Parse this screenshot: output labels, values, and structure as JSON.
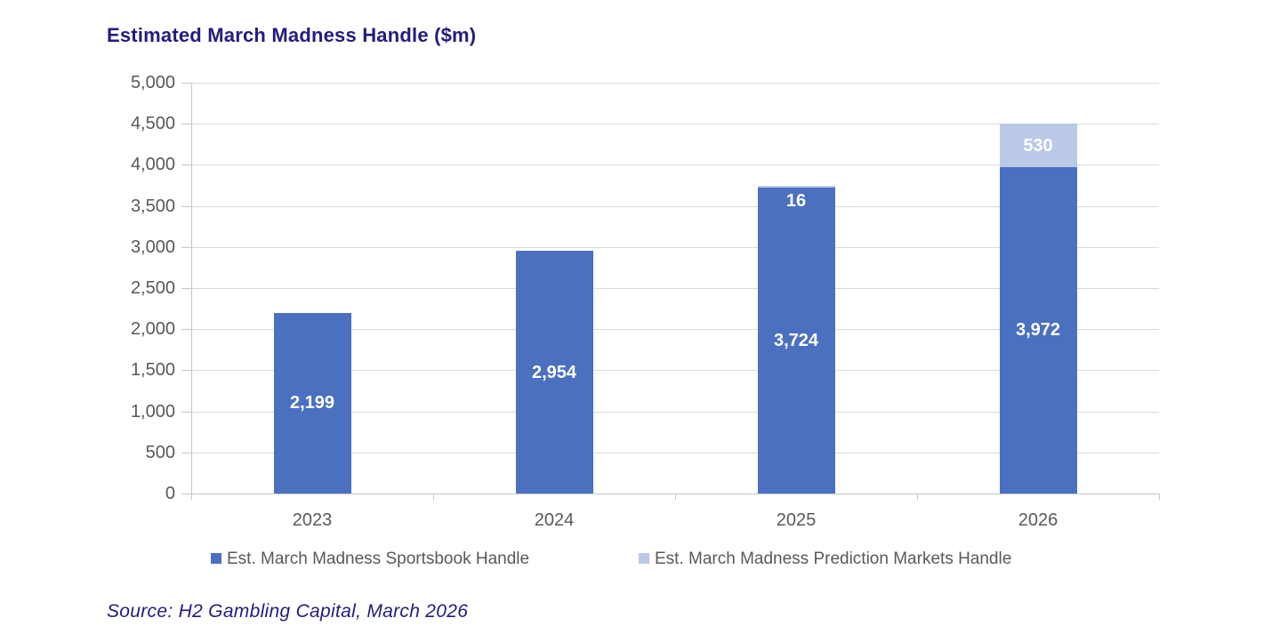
{
  "header": {
    "title": "Estimated March Madness Handle ($m)"
  },
  "footer": {
    "source": "Source: H2 Gambling Capital, March 2026"
  },
  "colors": {
    "title_navy": "#241c7d",
    "axis_text": "#595959",
    "gridline": "#d9d9d9",
    "axis_line": "#c6c6c6",
    "bar_label": "#ffffff",
    "sportsbook_blue": "#4b70c0",
    "prediction_light_blue": "#b9c9e6"
  },
  "chart_data": {
    "type": "bar",
    "stacked": true,
    "title": "Estimated March Madness Handle ($m)",
    "categories": [
      "2023",
      "2024",
      "2025",
      "2026"
    ],
    "series": [
      {
        "name": "Est. March Madness Sportsbook Handle",
        "color": "#4b70c0",
        "values": [
          2199,
          2954,
          3724,
          3972
        ],
        "data_labels": [
          "2,199",
          "2,954",
          "3,724",
          "3,972"
        ]
      },
      {
        "name": "Est. March Madness Prediction Markets Handle",
        "color": "#b9c9e6",
        "values": [
          0,
          0,
          16,
          530
        ],
        "data_labels": [
          "",
          "",
          "16",
          "530"
        ]
      }
    ],
    "xlabel": "",
    "ylabel": "",
    "ylim": [
      0,
      5000
    ],
    "ytick_step": 500,
    "ytick_labels": [
      "0",
      "500",
      "1,000",
      "1,500",
      "2,000",
      "2,500",
      "3,000",
      "3,500",
      "4,000",
      "4,500",
      "5,000"
    ],
    "grid": "horizontal",
    "legend_position": "bottom"
  },
  "legend": {
    "items": [
      {
        "label": "Est. March Madness Sportsbook Handle"
      },
      {
        "label": "Est. March Madness Prediction Markets Handle"
      }
    ]
  }
}
